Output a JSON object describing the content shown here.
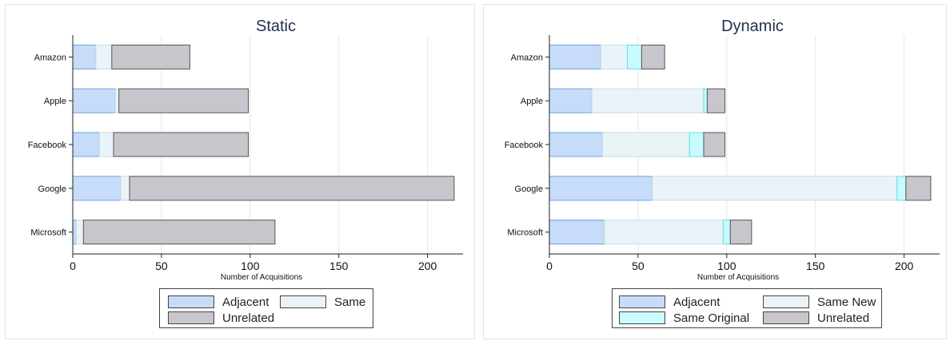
{
  "chart_data": [
    {
      "type": "bar",
      "orientation": "horizontal",
      "stacked": true,
      "title": "Static",
      "xlabel": "Number of Acquisitions",
      "ylabel": "",
      "xlim": [
        0,
        220
      ],
      "xticks": [
        "0",
        "50",
        "100",
        "150",
        "200"
      ],
      "categories": [
        "Amazon",
        "Apple",
        "Facebook",
        "Google",
        "Microsoft"
      ],
      "series": [
        {
          "name": "Adjacent",
          "color": "#c6dcf8",
          "stroke": "#6aa4e6",
          "values": [
            13,
            24,
            15,
            27,
            2
          ]
        },
        {
          "name": "Same",
          "color": "#eaf3f8",
          "stroke": "#c8dbe6",
          "values": [
            9,
            2,
            8,
            5,
            4
          ]
        },
        {
          "name": "Unrelated",
          "color": "#c7c6cd",
          "stroke": "#555555",
          "values": [
            44,
            73,
            76,
            183,
            108
          ]
        }
      ],
      "legend": {
        "position": "bottom",
        "columns": 2,
        "items": [
          "Adjacent",
          "Same",
          "Unrelated"
        ]
      },
      "grid": true
    },
    {
      "type": "bar",
      "orientation": "horizontal",
      "stacked": true,
      "title": "Dynamic",
      "xlabel": "Number of Acquisitions",
      "ylabel": "",
      "xlim": [
        0,
        220
      ],
      "xticks": [
        "0",
        "50",
        "100",
        "150",
        "200"
      ],
      "categories": [
        "Amazon",
        "Apple",
        "Facebook",
        "Google",
        "Microsoft"
      ],
      "series": [
        {
          "name": "Adjacent",
          "color": "#c6dcf8",
          "stroke": "#6aa4e6",
          "values": [
            29,
            24,
            30,
            58,
            31
          ]
        },
        {
          "name": "Same New",
          "color": "#eaf3f8",
          "stroke": "#c8dbe6",
          "values": [
            15,
            63,
            49,
            138,
            67
          ]
        },
        {
          "name": "Same Original",
          "color": "#c8fbfd",
          "stroke": "#5ee0ea",
          "values": [
            8,
            2,
            8,
            5,
            4
          ]
        },
        {
          "name": "Unrelated",
          "color": "#c7c6cd",
          "stroke": "#555555",
          "values": [
            13,
            10,
            12,
            14,
            12
          ]
        }
      ],
      "legend": {
        "position": "bottom",
        "columns": 2,
        "items": [
          "Adjacent",
          "Same New",
          "Same Original",
          "Unrelated"
        ]
      },
      "grid": true
    }
  ]
}
